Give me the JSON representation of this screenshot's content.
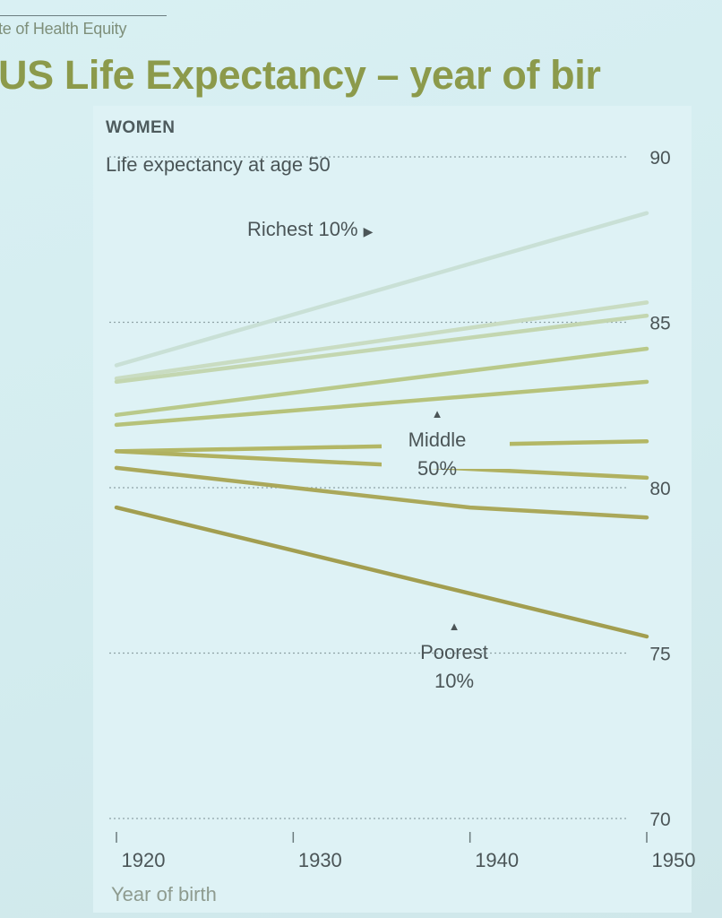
{
  "header": {
    "source": "te of Health Equity",
    "title": "US Life Expectancy – year of bir"
  },
  "chart_data": {
    "type": "line",
    "panel_title": "WOMEN",
    "ylabel": "Life expectancy at age 50",
    "xlabel": "Year of birth",
    "x_ticks": [
      1920,
      1930,
      1940,
      1950
    ],
    "y_ticks": [
      70,
      75,
      80,
      85,
      90
    ],
    "xlim": [
      1920,
      1950
    ],
    "ylim": [
      70,
      90
    ],
    "grid": "dotted horizontal",
    "annotations": {
      "richest": "Richest 10%",
      "middle_line1": "Middle",
      "middle_line2": "50%",
      "poorest_line1": "Poorest",
      "poorest_line2": "10%"
    },
    "series": [
      {
        "group": "richest",
        "color": "#c9e0d6",
        "x": [
          1920,
          1950
        ],
        "y": [
          83.7,
          88.3
        ]
      },
      {
        "group": "upper",
        "color": "#c9dcc2",
        "x": [
          1920,
          1950
        ],
        "y": [
          83.3,
          85.6
        ]
      },
      {
        "group": "upper",
        "color": "#c3d6b0",
        "x": [
          1920,
          1950
        ],
        "y": [
          83.2,
          85.2
        ]
      },
      {
        "group": "upper",
        "color": "#b9c98a",
        "x": [
          1920,
          1950
        ],
        "y": [
          82.2,
          84.2
        ]
      },
      {
        "group": "upper",
        "color": "#b6c27a",
        "x": [
          1920,
          1950
        ],
        "y": [
          81.9,
          83.2
        ]
      },
      {
        "group": "middle",
        "color": "#b3b765",
        "x": [
          1920,
          1950
        ],
        "y": [
          81.1,
          81.4
        ]
      },
      {
        "group": "middle",
        "color": "#b0b160",
        "x": [
          1920,
          1950
        ],
        "y": [
          81.1,
          80.3
        ]
      },
      {
        "group": "lower",
        "color": "#aaa85a",
        "x": [
          1920,
          1930,
          1940,
          1950
        ],
        "y": [
          80.6,
          80.0,
          79.4,
          79.1
        ]
      },
      {
        "group": "poorest",
        "color": "#a29e50",
        "x": [
          1920,
          1950
        ],
        "y": [
          79.4,
          75.5
        ]
      }
    ]
  }
}
